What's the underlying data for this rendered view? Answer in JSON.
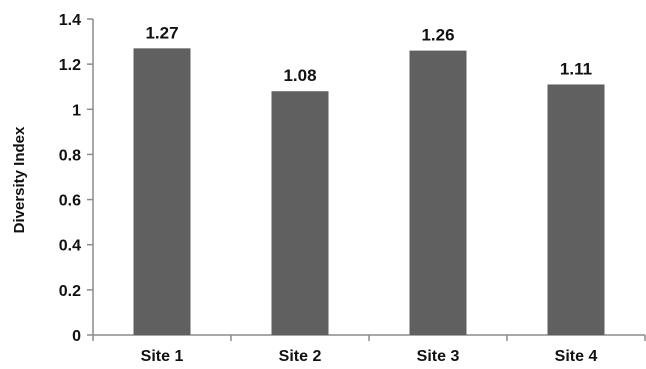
{
  "chart_data": {
    "type": "bar",
    "title": "",
    "xlabel": "",
    "ylabel": "Diversity Index",
    "categories": [
      "Site 1",
      "Site 2",
      "Site 3",
      "Site 4"
    ],
    "values": [
      1.27,
      1.08,
      1.26,
      1.11
    ],
    "data_labels": [
      "1.27",
      "1.08",
      "1.26",
      "1.11"
    ],
    "ylim": [
      0,
      1.4
    ],
    "yticks": [
      0,
      0.2,
      0.4,
      0.6,
      0.8,
      1,
      1.2,
      1.4
    ],
    "ytick_labels": [
      "0",
      "0.2",
      "0.4",
      "0.6",
      "0.8",
      "1",
      "1.2",
      "1.4"
    ],
    "grid": false,
    "legend": "none",
    "colors": {
      "bar": "#606060",
      "axis": "#8c8c8c",
      "text": "#111111"
    }
  }
}
